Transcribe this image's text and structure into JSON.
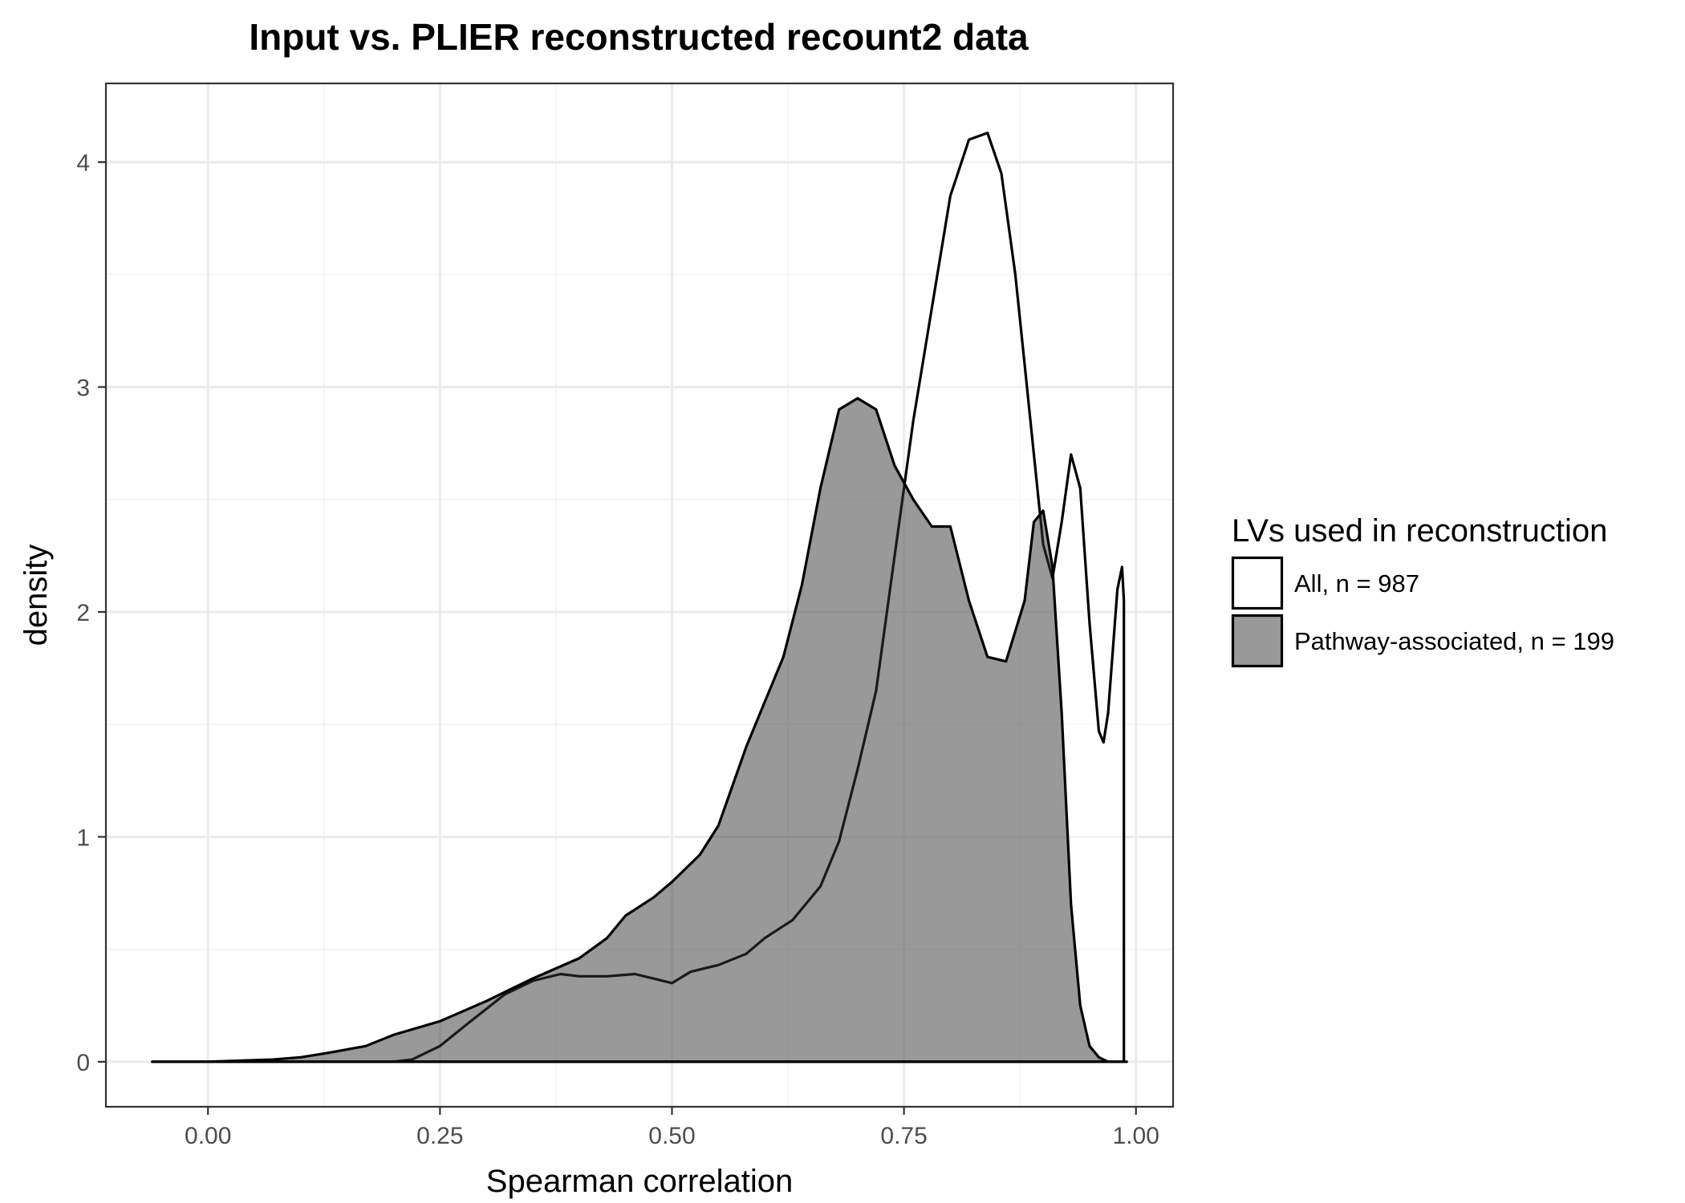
{
  "chart_data": {
    "type": "area",
    "title": "Input vs. PLIER reconstructed recount2 data",
    "xlabel": "Spearman correlation",
    "ylabel": "density",
    "xlim": [
      -0.11,
      1.04
    ],
    "ylim": [
      -0.2,
      4.35
    ],
    "x_ticks": [
      0.0,
      0.25,
      0.5,
      0.75,
      1.0
    ],
    "x_tick_labels": [
      "0.00",
      "0.25",
      "0.50",
      "0.75",
      "1.00"
    ],
    "y_ticks": [
      0,
      1,
      2,
      3,
      4
    ],
    "y_tick_labels": [
      "0",
      "1",
      "2",
      "3",
      "4"
    ],
    "grid": true,
    "legend": {
      "title": "LVs used in reconstruction",
      "position": "right",
      "entries": [
        "All, n = 987",
        "Pathway-associated, n = 199"
      ]
    },
    "series": [
      {
        "name": "All, n = 987",
        "fill": "#ffffff",
        "fill_opacity": 0.4,
        "stroke": "#000000",
        "x": [
          -0.06,
          0.0,
          0.1,
          0.15,
          0.2,
          0.22,
          0.25,
          0.28,
          0.32,
          0.35,
          0.38,
          0.4,
          0.43,
          0.46,
          0.48,
          0.5,
          0.52,
          0.55,
          0.58,
          0.6,
          0.63,
          0.66,
          0.68,
          0.7,
          0.72,
          0.74,
          0.76,
          0.78,
          0.8,
          0.82,
          0.84,
          0.855,
          0.87,
          0.88,
          0.895,
          0.9,
          0.91,
          0.92,
          0.93,
          0.94,
          0.95,
          0.96,
          0.965,
          0.97,
          0.98,
          0.985,
          0.987,
          0.987
        ],
        "y": [
          0.0,
          0.0,
          0.0,
          0.0,
          0.0,
          0.01,
          0.07,
          0.17,
          0.3,
          0.36,
          0.39,
          0.38,
          0.38,
          0.39,
          0.37,
          0.35,
          0.4,
          0.43,
          0.48,
          0.55,
          0.63,
          0.78,
          0.98,
          1.3,
          1.65,
          2.25,
          2.85,
          3.35,
          3.85,
          4.1,
          4.13,
          3.95,
          3.5,
          3.1,
          2.5,
          2.3,
          2.15,
          2.4,
          2.7,
          2.55,
          1.95,
          1.47,
          1.42,
          1.55,
          2.1,
          2.2,
          2.05,
          0.0
        ]
      },
      {
        "name": "Pathway-associated, n = 199",
        "fill": "#333333",
        "fill_opacity": 0.5,
        "stroke": "#000000",
        "x": [
          -0.06,
          0.0,
          0.07,
          0.1,
          0.13,
          0.17,
          0.2,
          0.25,
          0.3,
          0.35,
          0.4,
          0.43,
          0.45,
          0.48,
          0.5,
          0.53,
          0.55,
          0.58,
          0.6,
          0.62,
          0.64,
          0.66,
          0.68,
          0.7,
          0.72,
          0.74,
          0.76,
          0.78,
          0.8,
          0.82,
          0.84,
          0.86,
          0.88,
          0.89,
          0.9,
          0.91,
          0.92,
          0.93,
          0.94,
          0.95,
          0.96,
          0.97,
          0.99
        ],
        "y": [
          0.0,
          0.0,
          0.01,
          0.02,
          0.04,
          0.07,
          0.12,
          0.18,
          0.27,
          0.37,
          0.46,
          0.55,
          0.65,
          0.73,
          0.8,
          0.92,
          1.05,
          1.4,
          1.6,
          1.8,
          2.12,
          2.55,
          2.9,
          2.95,
          2.9,
          2.65,
          2.5,
          2.38,
          2.38,
          2.05,
          1.8,
          1.78,
          2.05,
          2.4,
          2.45,
          2.2,
          1.55,
          0.7,
          0.25,
          0.07,
          0.02,
          0.0,
          0.0
        ]
      }
    ]
  }
}
